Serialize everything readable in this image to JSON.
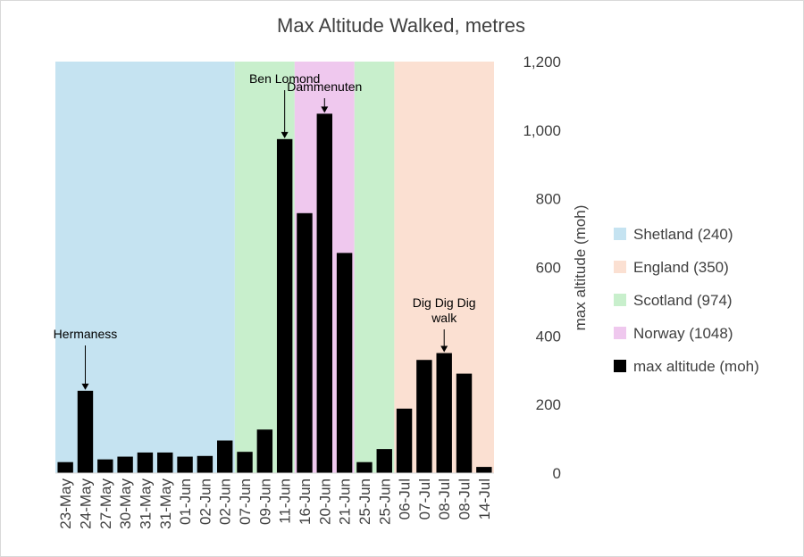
{
  "chart_data": {
    "type": "bar",
    "title": "Max Altitude Walked, metres",
    "xlabel": "",
    "ylabel": "max altitude (moh)",
    "ylim": [
      0,
      1200
    ],
    "yticks": [
      0,
      200,
      400,
      600,
      800,
      1000,
      1200
    ],
    "ytick_labels": [
      "0",
      "200",
      "400",
      "600",
      "800",
      "1,000",
      "1,200"
    ],
    "axis_side": "right",
    "grid": false,
    "legend_position": "right",
    "categories": [
      "23-May",
      "24-May",
      "27-May",
      "30-May",
      "31-May",
      "31-May",
      "01-Jun",
      "02-Jun",
      "02-Jun",
      "07-Jun",
      "09-Jun",
      "11-Jun",
      "16-Jun",
      "20-Jun",
      "21-Jun",
      "25-Jun",
      "25-Jun",
      "06-Jul",
      "07-Jul",
      "08-Jul",
      "08-Jul",
      "14-Jul"
    ],
    "series": [
      {
        "name": "max altitude (moh)",
        "color": "#000000",
        "values": [
          32,
          240,
          40,
          48,
          60,
          60,
          48,
          50,
          95,
          62,
          127,
          974,
          758,
          1048,
          642,
          32,
          70,
          188,
          330,
          350,
          290,
          18
        ]
      }
    ],
    "regions": [
      {
        "name": "Shetland (240)",
        "color": "#c5e3f1",
        "start_index": 0,
        "end_index": 8
      },
      {
        "name": "Scotland (974)",
        "color": "#c8efcc",
        "start_index": 9,
        "end_index": 11
      },
      {
        "name": "Norway (1048)",
        "color": "#efc8ee",
        "start_index": 12,
        "end_index": 14
      },
      {
        "name": "Scotland (974)",
        "color": "#c8efcc",
        "start_index": 15,
        "end_index": 16
      },
      {
        "name": "England (350)",
        "color": "#fbe0d2",
        "start_index": 17,
        "end_index": 21
      }
    ],
    "legend": [
      {
        "label": "Shetland (240)",
        "color": "#c5e3f1"
      },
      {
        "label": "England (350)",
        "color": "#fbe0d2"
      },
      {
        "label": "Scotland (974)",
        "color": "#c8efcc"
      },
      {
        "label": "Norway (1048)",
        "color": "#efc8ee"
      },
      {
        "label": "max altitude (moh)",
        "color": "#000000"
      }
    ],
    "annotations": [
      {
        "lines": [
          "Hermaness"
        ],
        "index": 1
      },
      {
        "lines": [
          "Ben Lomond"
        ],
        "index": 11
      },
      {
        "lines": [
          "Dammenuten"
        ],
        "index": 13
      },
      {
        "lines": [
          "Dig Dig Dig",
          "walk"
        ],
        "index": 19
      }
    ]
  }
}
